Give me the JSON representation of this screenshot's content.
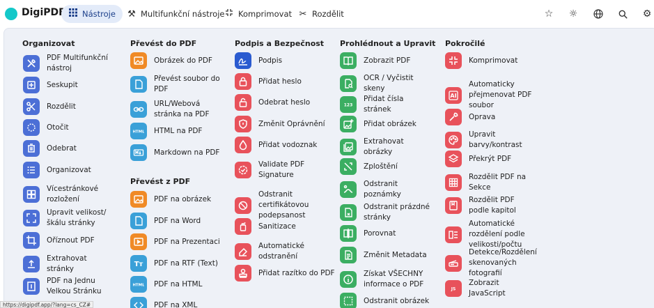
{
  "brand": "DigiPDF",
  "nav": [
    {
      "label": "Nástroje",
      "icon": "grid-icon"
    },
    {
      "label": "Multifunkční nástroje",
      "icon": "tools-icon"
    },
    {
      "label": "Komprimovat",
      "icon": "compress-icon"
    },
    {
      "label": "Rozdělit",
      "icon": "scissors-icon"
    }
  ],
  "columns": [
    {
      "title": "Organizovat"
    },
    {
      "title": "Převést do PDF"
    },
    {
      "title": "Podpis a Bezpečnost"
    },
    {
      "title": "Prohlédnout a Upravit"
    },
    {
      "title": "Pokročilé"
    },
    {
      "title": "Převést z PDF"
    }
  ],
  "organize": [
    "PDF Multifunkční nástroj",
    "Seskupit",
    "Rozdělit",
    "Otočit",
    "Odebrat",
    "Organizovat",
    "Vícestránkové rozložení",
    "Upravit velikost/škálu stránky",
    "Oříznout PDF",
    "Extrahovat stránky",
    "PDF na Jednu Velkou Stránku"
  ],
  "to_pdf": [
    "Obrázek do PDF",
    "Převést soubor do PDF",
    "URL/Webová stránka na PDF",
    "HTML na PDF",
    "Markdown na PDF"
  ],
  "from_pdf": [
    "PDF na obrázek",
    "PDF na Word",
    "PDF na Prezentaci",
    "PDF na RTF (Text)",
    "PDF na HTML",
    "PDF na XML"
  ],
  "security": [
    "Podpis",
    "Přidat heslo",
    "Odebrat heslo",
    "Změnit Oprávnění",
    "Přidat vodoznak",
    "Validate PDF Signature",
    "Odstranit certifikátovou podepsanost",
    "Sanitizace",
    "Automatické odstranění",
    "Přidat razítko do PDF"
  ],
  "view_edit": [
    "Zobrazit PDF",
    "OCR / Vyčistit skeny",
    "Přidat čísla stránek",
    "Přidat obrázek",
    "Extrahovat obrázky",
    "Zploštění",
    "Odstranit poznámky",
    "Odstranit prázdné stránky",
    "Porovnat",
    "Změnit Metadata",
    "Získat VŠECHNY informace o PDF",
    "Odstranit obrázek"
  ],
  "advanced": [
    "Komprimovat",
    "Automaticky přejmenovat PDF soubor",
    "Oprava",
    "Upravit barvy/kontrast",
    "Překrýt PDF",
    "Rozdělit PDF na Sekce",
    "Rozdělit PDF podle kapitol",
    "Automatické rozdělení podle velikosti/počtu",
    "Detekce/Rozdělení skenovaných fotografií",
    "Zobrazit JavaScript"
  ],
  "status_url": "https://digipdf.app/?lang=cs_CZ#",
  "colors": {
    "blue": "#4c6fd6",
    "orange": "#f08a26",
    "red": "#e8525b",
    "green": "#3bae62",
    "accent": "#14c8c9"
  }
}
